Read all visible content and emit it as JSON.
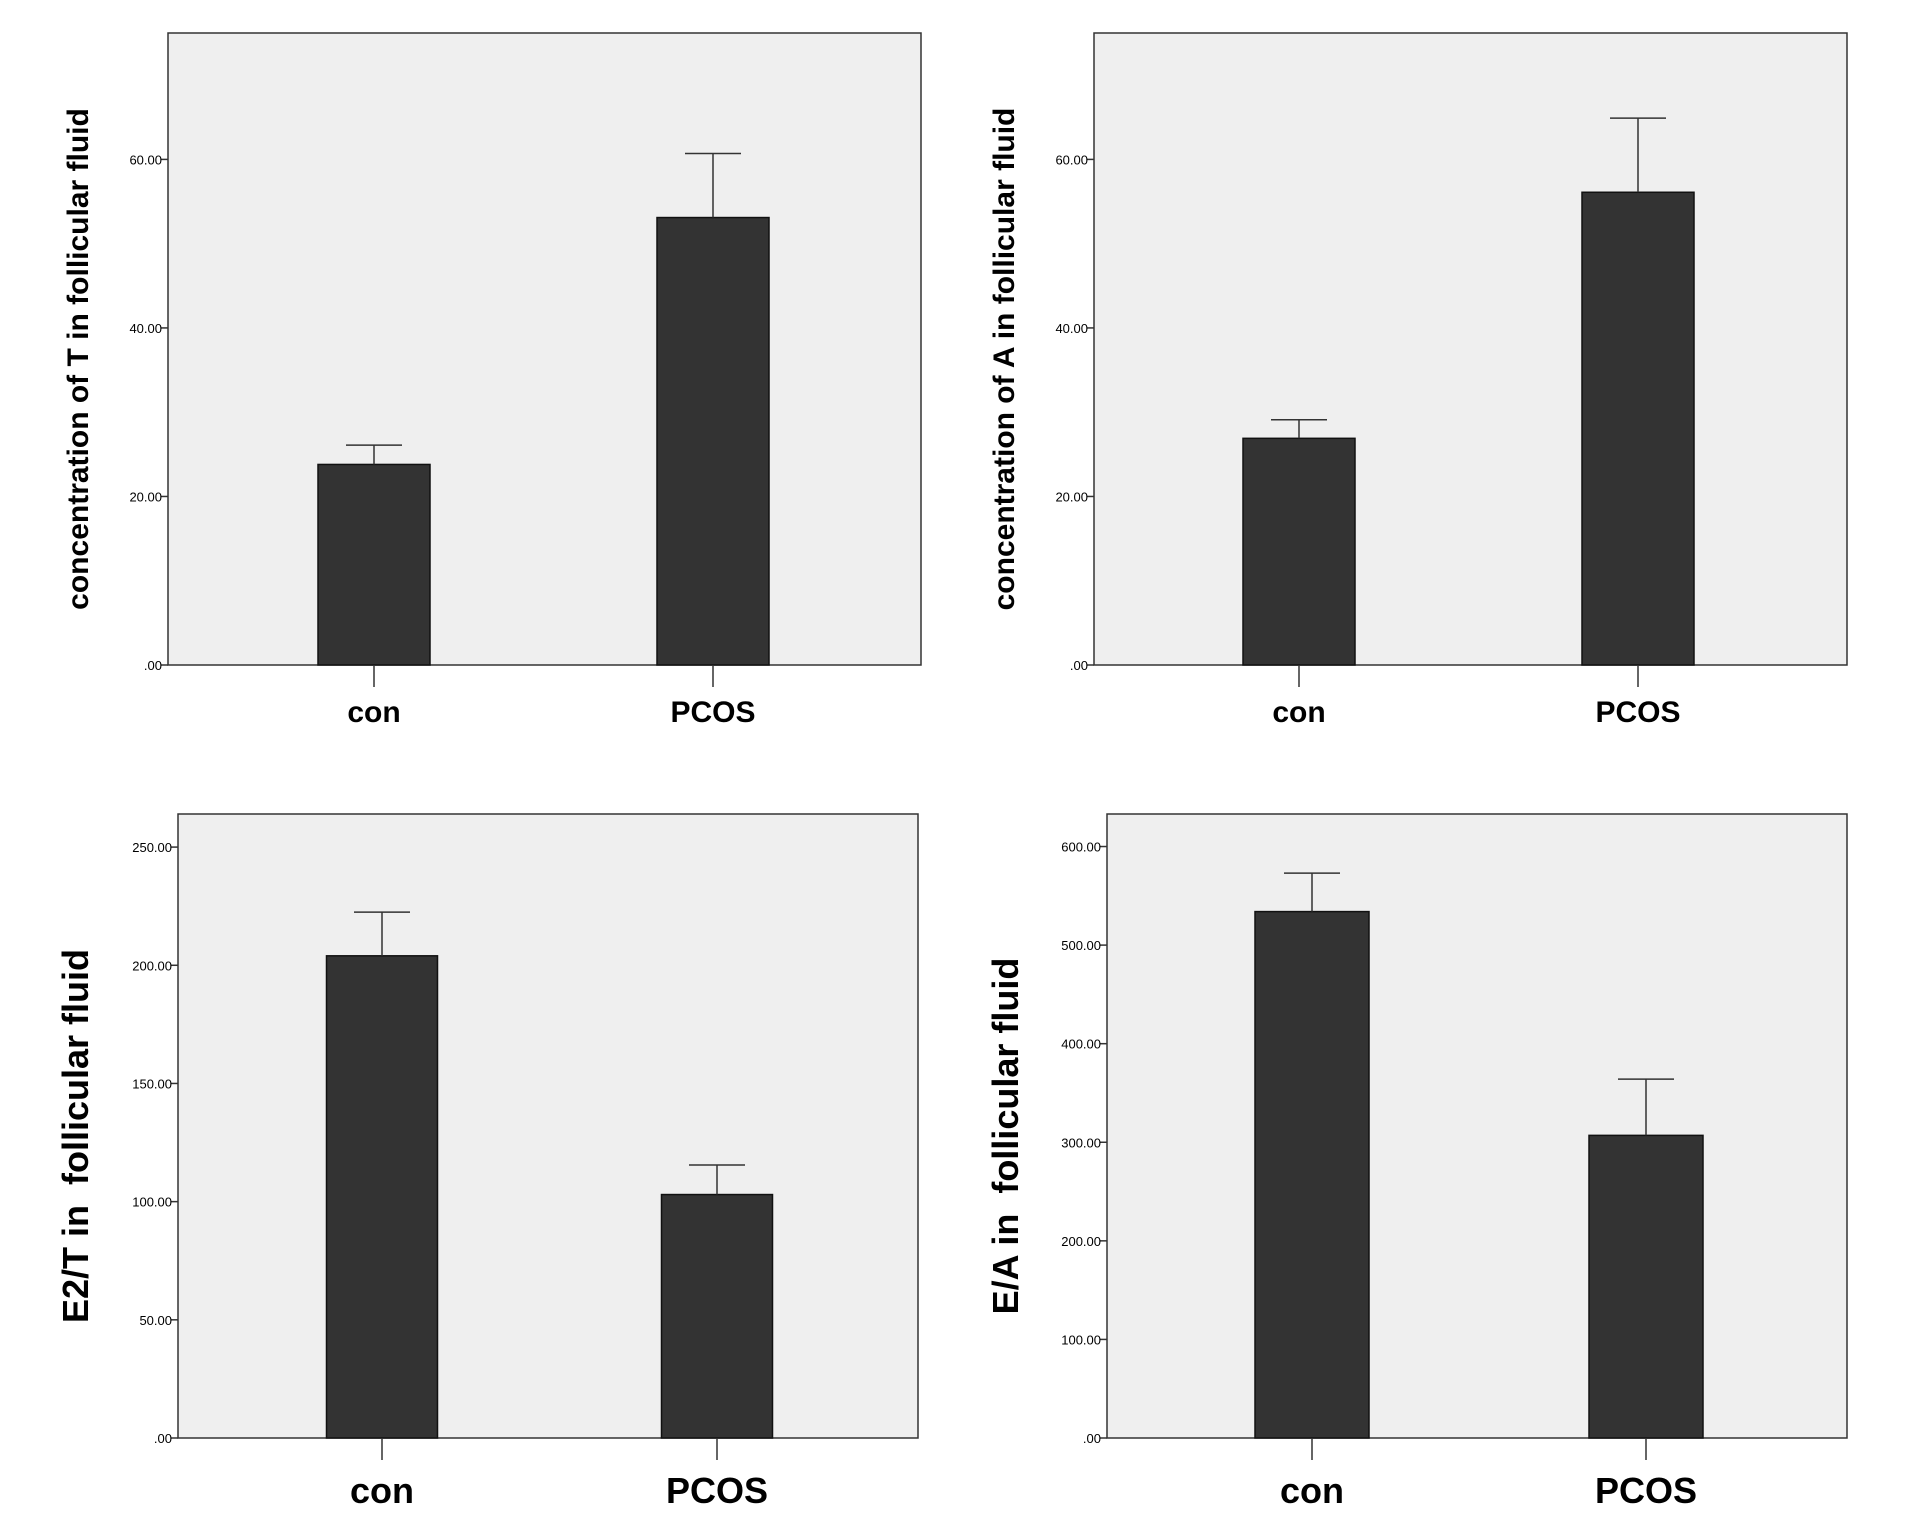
{
  "chart_data": [
    {
      "type": "bar",
      "categories": [
        "con",
        "PCOS"
      ],
      "values": [
        23.8,
        53.1
      ],
      "errors": [
        2.3,
        7.6
      ],
      "ylabel": "concentration of T in follicular fluid",
      "ylim": [
        0,
        75
      ],
      "yticks": [
        ".00",
        "20.00",
        "40.00",
        "60.00"
      ],
      "ytick_values": [
        0,
        20,
        40,
        60
      ]
    },
    {
      "type": "bar",
      "categories": [
        "con",
        "PCOS"
      ],
      "values": [
        26.9,
        56.1
      ],
      "errors": [
        2.2,
        8.8
      ],
      "ylabel": "concentration of A in follicular fluid",
      "ylim": [
        0,
        75
      ],
      "yticks": [
        ".00",
        "20.00",
        "40.00",
        "60.00"
      ],
      "ytick_values": [
        0,
        20,
        40,
        60
      ]
    },
    {
      "type": "bar",
      "categories": [
        "con",
        "PCOS"
      ],
      "values": [
        204,
        103
      ],
      "errors": [
        18.5,
        12.5
      ],
      "ylabel": "E2/T in  follicular fluid",
      "ylim": [
        0,
        264
      ],
      "yticks": [
        ".00",
        "50.00",
        "100.00",
        "150.00",
        "200.00",
        "250.00"
      ],
      "ytick_values": [
        0,
        50,
        100,
        150,
        200,
        250
      ]
    },
    {
      "type": "bar",
      "categories": [
        "con",
        "PCOS"
      ],
      "values": [
        534,
        307
      ],
      "errors": [
        39,
        57
      ],
      "ylabel": "E/A in  follicular fluid",
      "ylim": [
        0,
        633
      ],
      "yticks": [
        ".00",
        "100.00",
        "200.00",
        "300.00",
        "400.00",
        "500.00",
        "600.00"
      ],
      "ytick_values": [
        0,
        100,
        200,
        300,
        400,
        500,
        600
      ]
    }
  ],
  "colors": {
    "bar": "#333333",
    "plot_background": "#efefef"
  }
}
